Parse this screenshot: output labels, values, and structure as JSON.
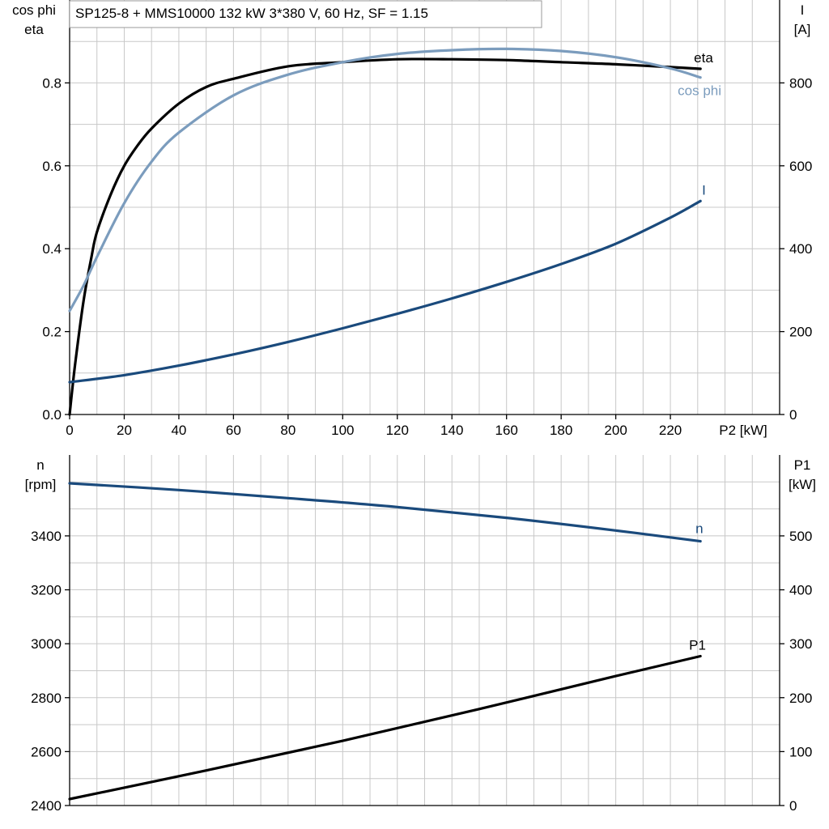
{
  "title": "SP125-8 + MMS10000   132 kW   3*380 V, 60 Hz, SF = 1.15",
  "colors": {
    "black": "#000000",
    "light_blue": "#7b9cbd",
    "dark_blue": "#1a4a7c",
    "grid": "#c8c8c8"
  },
  "chart_data": [
    {
      "type": "line",
      "title": "SP125-8 + MMS10000   132 kW   3*380 V, 60 Hz, SF = 1.15",
      "xlabel": "P2 [kW]",
      "ylabel_left": [
        "cos phi",
        "eta"
      ],
      "ylabel_right": [
        "I",
        "[A]"
      ],
      "xlim": [
        0,
        260
      ],
      "ylim_left": [
        0,
        1.0
      ],
      "ylim_right": [
        0,
        1000
      ],
      "x_ticks": [
        0,
        20,
        40,
        60,
        80,
        100,
        120,
        140,
        160,
        180,
        200,
        220
      ],
      "x_tick_labels": [
        "0",
        "20",
        "40",
        "60",
        "80",
        "100",
        "120",
        "140",
        "160",
        "180",
        "200",
        "220"
      ],
      "y_left_ticks": [
        0,
        0.2,
        0.4,
        0.6,
        0.8
      ],
      "y_left_tick_labels": [
        "0.0",
        "0.2",
        "0.4",
        "0.6",
        "0.8"
      ],
      "y_right_ticks": [
        0,
        200,
        400,
        600,
        800
      ],
      "y_right_tick_labels": [
        "0",
        "200",
        "400",
        "600",
        "800"
      ],
      "grid": true,
      "series": [
        {
          "name": "eta",
          "axis": "left",
          "color": "#000000",
          "x": [
            0,
            2,
            5,
            8,
            10,
            15,
            20,
            25,
            30,
            40,
            50,
            60,
            80,
            100,
            120,
            140,
            160,
            180,
            200,
            220,
            231
          ],
          "y": [
            0.0,
            0.12,
            0.27,
            0.38,
            0.44,
            0.53,
            0.6,
            0.65,
            0.69,
            0.75,
            0.79,
            0.81,
            0.84,
            0.85,
            0.857,
            0.857,
            0.855,
            0.85,
            0.845,
            0.838,
            0.834
          ]
        },
        {
          "name": "cos phi",
          "axis": "left",
          "color": "#7b9cbd",
          "x": [
            0,
            5,
            10,
            20,
            30,
            40,
            60,
            80,
            100,
            120,
            140,
            160,
            180,
            200,
            220,
            231
          ],
          "y": [
            0.25,
            0.31,
            0.38,
            0.51,
            0.61,
            0.68,
            0.77,
            0.82,
            0.85,
            0.87,
            0.879,
            0.882,
            0.877,
            0.862,
            0.835,
            0.813
          ]
        },
        {
          "name": "I",
          "axis": "right",
          "color": "#1a4a7c",
          "x": [
            0,
            20,
            40,
            60,
            80,
            100,
            120,
            140,
            160,
            180,
            200,
            220,
            231
          ],
          "y": [
            78,
            95,
            118,
            145,
            175,
            208,
            243,
            280,
            320,
            363,
            412,
            475,
            515
          ]
        }
      ]
    },
    {
      "type": "line",
      "xlabel": "",
      "ylabel_left": [
        "n",
        "[rpm]"
      ],
      "ylabel_right": [
        "P1",
        "[kW]"
      ],
      "xlim": [
        0,
        260
      ],
      "ylim_left": [
        2400,
        3700
      ],
      "ylim_right": [
        0,
        650
      ],
      "y_left_ticks": [
        2400,
        2600,
        2800,
        3000,
        3200,
        3400
      ],
      "y_left_tick_labels": [
        "2400",
        "2600",
        "2800",
        "3000",
        "3200",
        "3400"
      ],
      "y_right_ticks": [
        0,
        100,
        200,
        300,
        400,
        500
      ],
      "y_right_tick_labels": [
        "0",
        "100",
        "200",
        "300",
        "400",
        "500"
      ],
      "grid": true,
      "series": [
        {
          "name": "n",
          "axis": "left",
          "color": "#1a4a7c",
          "x": [
            0,
            40,
            80,
            120,
            160,
            200,
            231
          ],
          "y": [
            3595,
            3570,
            3540,
            3507,
            3467,
            3420,
            3380
          ]
        },
        {
          "name": "P1",
          "axis": "right",
          "color": "#000000",
          "x": [
            0,
            50,
            100,
            150,
            200,
            231
          ],
          "y": [
            12,
            65,
            120,
            179,
            240,
            277
          ]
        }
      ]
    }
  ]
}
